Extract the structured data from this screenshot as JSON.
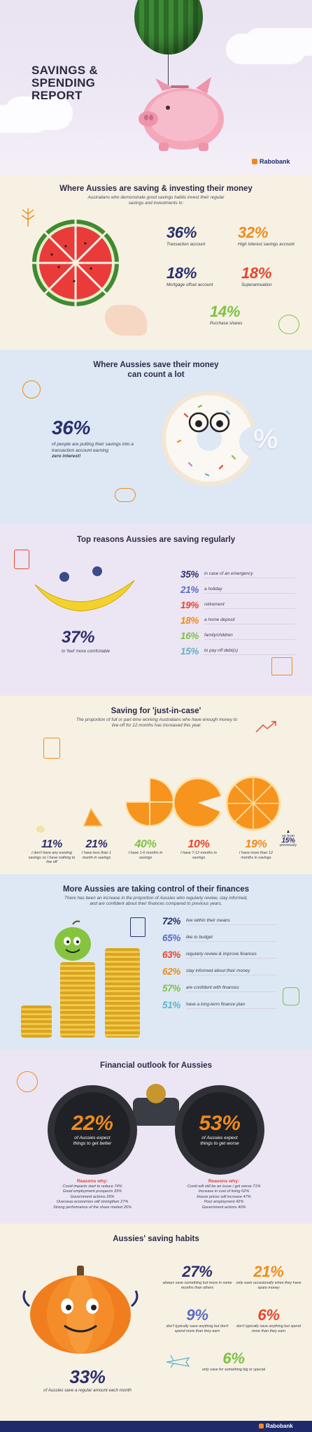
{
  "header": {
    "title_line1": "SAVINGS &",
    "title_line2": "SPENDING",
    "title_line3": "REPORT",
    "brand": "Rabobank"
  },
  "saving_investing": {
    "heading": "Where Aussies are saving & investing their money",
    "subheading": "Australians who demonstrate good savings habits invest their regular savings and investments in:",
    "items": [
      {
        "value": "36%",
        "label": "Transaction account",
        "color": "#2b2e6e"
      },
      {
        "value": "32%",
        "label": "High interest savings account",
        "color": "#f08a1c"
      },
      {
        "value": "18%",
        "label": "Mortgage offset account",
        "color": "#2b2e6e"
      },
      {
        "value": "18%",
        "label": "Superannuation",
        "color": "#e8452d"
      },
      {
        "value": "14%",
        "label": "Purchase shares",
        "color": "#7cc243"
      }
    ]
  },
  "count_a_lot": {
    "heading_line1": "Where Aussies save their money",
    "heading_line2": "can count a lot",
    "value": "36%",
    "text": "of people are putting their savings into a transaction account earning",
    "emphasis": "zero interest!",
    "donut_symbol": "%"
  },
  "top_reasons": {
    "heading": "Top reasons Aussies are saving regularly",
    "main_value": "37%",
    "main_label": "to 'feel' more comfortable",
    "items": [
      {
        "value": "35%",
        "label": "in case of an emergency",
        "color": "#2b2e6e"
      },
      {
        "value": "21%",
        "label": "a holiday",
        "color": "#5b6cc4"
      },
      {
        "value": "19%",
        "label": "retirement",
        "color": "#e8452d"
      },
      {
        "value": "18%",
        "label": "a home deposit",
        "color": "#f08a1c"
      },
      {
        "value": "16%",
        "label": "family/children",
        "color": "#7cc243"
      },
      {
        "value": "15%",
        "label": "to pay off debt(s)",
        "color": "#5fb3c8"
      }
    ]
  },
  "just_in_case": {
    "heading": "Saving for 'just-in-case'",
    "subheading": "The proportion of full or part-time working Australians who have enough money to live off for 12 months has increased this year.",
    "items": [
      {
        "value": "11%",
        "label": "I don't have any existing savings so I have nothing to live off",
        "color": "#2b2e6e"
      },
      {
        "value": "21%",
        "label": "I have less than 1 month in savings",
        "color": "#2b2e6e"
      },
      {
        "value": "40%",
        "label": "I have 1-6 months in savings",
        "color": "#7cc243"
      },
      {
        "value": "10%",
        "label": "I have 7-12 months in savings",
        "color": "#e8452d"
      },
      {
        "value": "19%",
        "label": "I have more than 12 months in savings",
        "color": "#f08a1c"
      }
    ],
    "up_from_prefix": "up from",
    "up_from_value": "15%",
    "up_from_suffix": "previously"
  },
  "control": {
    "heading": "More Aussies are taking control of their finances",
    "subheading": "There has been an increase in the proportion of Aussies who regularly review, stay informed, and are confident about their finances compared to previous years.",
    "items": [
      {
        "value": "72%",
        "label": "live within their means",
        "color": "#2b2e6e"
      },
      {
        "value": "65%",
        "label": "like to budget",
        "color": "#5b6cc4"
      },
      {
        "value": "63%",
        "label": "regularly review & improve finances",
        "color": "#e8452d"
      },
      {
        "value": "62%",
        "label": "stay informed about their money",
        "color": "#f08a1c"
      },
      {
        "value": "57%",
        "label": "are confident with finances",
        "color": "#7cc243"
      },
      {
        "value": "51%",
        "label": "have a long-term finance plan",
        "color": "#5fb3c8"
      }
    ]
  },
  "outlook": {
    "heading": "Financial outlook for Aussies",
    "better_value": "22%",
    "better_text": "of Aussies expect things to get better",
    "worse_value": "53%",
    "worse_text": "of Aussies expect things to get worse",
    "reasons_heading": "Reasons why:",
    "better_reasons": [
      "Covid impacts start to reduce 74%",
      "Good employment prospects 33%",
      "Government actions 29%",
      "Overseas economies will strengthen 27%",
      "Strong performance of the share market 26%"
    ],
    "worse_reasons": [
      "Covid will still be an issue / get worse 71%",
      "Increase in cost of living 62%",
      "House prices will increase 47%",
      "Poor employment 42%",
      "Government actions 40%"
    ]
  },
  "habits": {
    "heading": "Aussies' saving habits",
    "main_value": "33%",
    "main_label": "of Aussies save a regular amount each month",
    "items": [
      {
        "value": "27%",
        "label": "always save something but more in some months than others",
        "color": "#2b2e6e"
      },
      {
        "value": "21%",
        "label": "only save occasionally when they have spare money",
        "color": "#f08a1c"
      },
      {
        "value": "9%",
        "label": "don't typically save anything but don't spend more than they earn",
        "color": "#5b6cc4"
      },
      {
        "value": "6%",
        "label": "don't typically save anything but spend more than they earn",
        "color": "#e8452d"
      },
      {
        "value": "6%",
        "label": "only save for something big or special",
        "color": "#7cc243"
      }
    ]
  },
  "footer": {
    "brand": "Rabobank"
  }
}
